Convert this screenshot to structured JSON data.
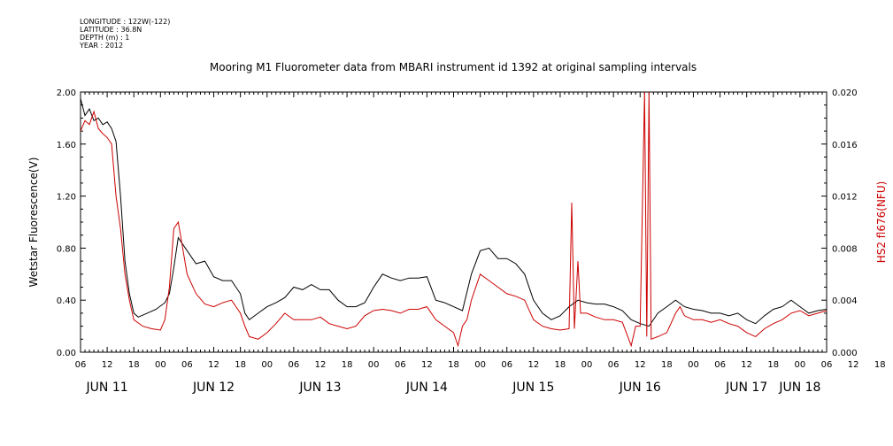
{
  "metadata": [
    "LONGITUDE : 122W(-122)",
    "LATITUDE : 36.8N",
    "DEPTH (m) : 1",
    "YEAR : 2012"
  ],
  "chart_data": {
    "type": "line",
    "title": "Mooring M1 Fluorometer data from MBARI instrument id 1392 at original sampling intervals",
    "ylabel": "Wetstar Fluorescence(V)",
    "y2label": "HS2 fl676(NFU)",
    "ylim": [
      0,
      2.0
    ],
    "y2lim": [
      0,
      0.02
    ],
    "y_ticks": [
      "0.00",
      "0.40",
      "0.80",
      "1.20",
      "1.60",
      "2.00"
    ],
    "y2_ticks": [
      "0.000",
      "0.004",
      "0.008",
      "0.012",
      "0.016",
      "0.020"
    ],
    "x_hour_labels": [
      "06",
      "12",
      "18",
      "00",
      "06",
      "12",
      "18",
      "00",
      "06",
      "12",
      "18",
      "00",
      "06",
      "12",
      "18",
      "00",
      "06",
      "12",
      "18",
      "00",
      "06",
      "12",
      "18",
      "00",
      "06",
      "12",
      "18",
      "00",
      "06",
      "12",
      "18",
      "00",
      "06"
    ],
    "x_day_labels": [
      "JUN 11",
      "JUN 12",
      "JUN 13",
      "JUN 14",
      "JUN 15",
      "JUN 16",
      "JUN 17",
      "JUN 18"
    ],
    "x_unit": "hours since JUN 11 06:00",
    "xlim": [
      0,
      168
    ],
    "grid": false,
    "series": [
      {
        "name": "Wetstar Fluorescence(V)",
        "color": "#000000",
        "axis": "left",
        "points": [
          [
            0,
            1.95
          ],
          [
            1,
            1.82
          ],
          [
            2,
            1.87
          ],
          [
            3,
            1.78
          ],
          [
            4,
            1.8
          ],
          [
            5,
            1.75
          ],
          [
            6,
            1.77
          ],
          [
            7,
            1.72
          ],
          [
            8,
            1.62
          ],
          [
            9,
            1.2
          ],
          [
            10,
            0.7
          ],
          [
            11,
            0.45
          ],
          [
            12,
            0.3
          ],
          [
            13,
            0.27
          ],
          [
            15,
            0.3
          ],
          [
            17,
            0.33
          ],
          [
            19,
            0.38
          ],
          [
            20,
            0.45
          ],
          [
            21,
            0.65
          ],
          [
            22,
            0.88
          ],
          [
            24,
            0.78
          ],
          [
            26,
            0.68
          ],
          [
            28,
            0.7
          ],
          [
            30,
            0.58
          ],
          [
            32,
            0.55
          ],
          [
            34,
            0.55
          ],
          [
            36,
            0.45
          ],
          [
            37,
            0.3
          ],
          [
            38,
            0.25
          ],
          [
            40,
            0.3
          ],
          [
            42,
            0.35
          ],
          [
            44,
            0.38
          ],
          [
            46,
            0.42
          ],
          [
            48,
            0.5
          ],
          [
            50,
            0.48
          ],
          [
            52,
            0.52
          ],
          [
            54,
            0.48
          ],
          [
            56,
            0.48
          ],
          [
            58,
            0.4
          ],
          [
            60,
            0.35
          ],
          [
            62,
            0.35
          ],
          [
            64,
            0.38
          ],
          [
            66,
            0.5
          ],
          [
            68,
            0.6
          ],
          [
            70,
            0.57
          ],
          [
            72,
            0.55
          ],
          [
            74,
            0.57
          ],
          [
            76,
            0.57
          ],
          [
            78,
            0.58
          ],
          [
            80,
            0.4
          ],
          [
            82,
            0.38
          ],
          [
            84,
            0.35
          ],
          [
            86,
            0.32
          ],
          [
            88,
            0.6
          ],
          [
            90,
            0.78
          ],
          [
            92,
            0.8
          ],
          [
            94,
            0.72
          ],
          [
            96,
            0.72
          ],
          [
            98,
            0.68
          ],
          [
            100,
            0.6
          ],
          [
            102,
            0.4
          ],
          [
            104,
            0.3
          ],
          [
            106,
            0.25
          ],
          [
            108,
            0.28
          ],
          [
            110,
            0.35
          ],
          [
            112,
            0.4
          ],
          [
            114,
            0.38
          ],
          [
            116,
            0.37
          ],
          [
            118,
            0.37
          ],
          [
            120,
            0.35
          ],
          [
            122,
            0.32
          ],
          [
            124,
            0.25
          ],
          [
            126,
            0.22
          ],
          [
            128,
            0.2
          ],
          [
            130,
            0.3
          ],
          [
            132,
            0.35
          ],
          [
            134,
            0.4
          ],
          [
            136,
            0.35
          ],
          [
            138,
            0.33
          ],
          [
            140,
            0.32
          ],
          [
            142,
            0.3
          ],
          [
            144,
            0.3
          ],
          [
            146,
            0.28
          ],
          [
            148,
            0.3
          ],
          [
            150,
            0.25
          ],
          [
            152,
            0.22
          ],
          [
            154,
            0.28
          ],
          [
            156,
            0.33
          ],
          [
            158,
            0.35
          ],
          [
            160,
            0.4
          ],
          [
            162,
            0.35
          ],
          [
            164,
            0.3
          ],
          [
            166,
            0.32
          ],
          [
            168,
            0.33
          ]
        ]
      },
      {
        "name": "HS2 fl676(NFU)",
        "color": "#cc0000",
        "axis": "right",
        "points": [
          [
            0,
            0.017
          ],
          [
            1,
            0.0178
          ],
          [
            2,
            0.0175
          ],
          [
            3,
            0.0185
          ],
          [
            4,
            0.0172
          ],
          [
            5,
            0.0168
          ],
          [
            6,
            0.0165
          ],
          [
            7,
            0.016
          ],
          [
            8,
            0.012
          ],
          [
            9,
            0.0095
          ],
          [
            10,
            0.006
          ],
          [
            11,
            0.004
          ],
          [
            12,
            0.0025
          ],
          [
            14,
            0.002
          ],
          [
            16,
            0.0018
          ],
          [
            18,
            0.0017
          ],
          [
            19,
            0.0025
          ],
          [
            20,
            0.005
          ],
          [
            21,
            0.0095
          ],
          [
            22,
            0.01
          ],
          [
            23,
            0.008
          ],
          [
            24,
            0.006
          ],
          [
            26,
            0.0045
          ],
          [
            28,
            0.0037
          ],
          [
            30,
            0.0035
          ],
          [
            32,
            0.0038
          ],
          [
            34,
            0.004
          ],
          [
            36,
            0.003
          ],
          [
            37,
            0.002
          ],
          [
            38,
            0.0012
          ],
          [
            40,
            0.001
          ],
          [
            42,
            0.0015
          ],
          [
            44,
            0.0022
          ],
          [
            46,
            0.003
          ],
          [
            48,
            0.0025
          ],
          [
            50,
            0.0025
          ],
          [
            52,
            0.0025
          ],
          [
            54,
            0.0027
          ],
          [
            56,
            0.0022
          ],
          [
            58,
            0.002
          ],
          [
            60,
            0.0018
          ],
          [
            62,
            0.002
          ],
          [
            64,
            0.0028
          ],
          [
            66,
            0.0032
          ],
          [
            68,
            0.0033
          ],
          [
            70,
            0.0032
          ],
          [
            72,
            0.003
          ],
          [
            74,
            0.0033
          ],
          [
            76,
            0.0033
          ],
          [
            78,
            0.0035
          ],
          [
            80,
            0.0025
          ],
          [
            82,
            0.002
          ],
          [
            84,
            0.0015
          ],
          [
            85,
            0.0005
          ],
          [
            86,
            0.002
          ],
          [
            87,
            0.0025
          ],
          [
            88,
            0.004
          ],
          [
            90,
            0.006
          ],
          [
            92,
            0.0055
          ],
          [
            94,
            0.005
          ],
          [
            96,
            0.0045
          ],
          [
            98,
            0.0043
          ],
          [
            100,
            0.004
          ],
          [
            102,
            0.0025
          ],
          [
            104,
            0.002
          ],
          [
            106,
            0.0018
          ],
          [
            108,
            0.0017
          ],
          [
            110,
            0.0018
          ],
          [
            110.6,
            0.0115
          ],
          [
            111.2,
            0.0018
          ],
          [
            112,
            0.007
          ],
          [
            112.6,
            0.003
          ],
          [
            114,
            0.003
          ],
          [
            116,
            0.0027
          ],
          [
            118,
            0.0025
          ],
          [
            120,
            0.0025
          ],
          [
            122,
            0.0023
          ],
          [
            124,
            0.0005
          ],
          [
            125,
            0.002
          ],
          [
            126,
            0.002
          ],
          [
            127,
            0.02
          ],
          [
            127.5,
            0.0012
          ],
          [
            128,
            0.02
          ],
          [
            128.5,
            0.001
          ],
          [
            130,
            0.0012
          ],
          [
            132,
            0.0015
          ],
          [
            134,
            0.003
          ],
          [
            135,
            0.0035
          ],
          [
            136,
            0.0028
          ],
          [
            138,
            0.0025
          ],
          [
            140,
            0.0025
          ],
          [
            142,
            0.0023
          ],
          [
            144,
            0.0025
          ],
          [
            146,
            0.0022
          ],
          [
            148,
            0.002
          ],
          [
            150,
            0.0015
          ],
          [
            152,
            0.0012
          ],
          [
            154,
            0.0018
          ],
          [
            156,
            0.0022
          ],
          [
            158,
            0.0025
          ],
          [
            160,
            0.003
          ],
          [
            162,
            0.0032
          ],
          [
            164,
            0.0028
          ],
          [
            166,
            0.003
          ],
          [
            168,
            0.0032
          ]
        ]
      }
    ]
  }
}
